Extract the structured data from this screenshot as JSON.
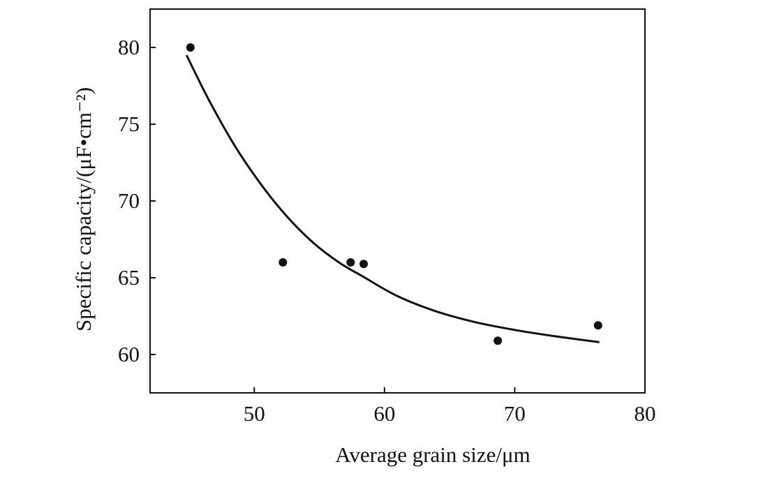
{
  "chart_data": {
    "type": "scatter",
    "title": "",
    "xlabel": "Average grain size/μm",
    "ylabel": "Specific capacity/(μF•cm⁻²)",
    "xlim": [
      42,
      80
    ],
    "ylim": [
      57.5,
      82.5
    ],
    "xticks": [
      50,
      60,
      70,
      80
    ],
    "yticks": [
      60,
      65,
      70,
      75,
      80
    ],
    "grid": false,
    "legend": "none",
    "series": [
      {
        "kind": "points",
        "x": [
          45.1,
          52.2,
          57.4,
          58.4,
          68.7,
          76.4
        ],
        "y": [
          80.0,
          66.0,
          66.0,
          65.9,
          60.9,
          61.9
        ]
      },
      {
        "kind": "fit-curve",
        "x": [
          44.8,
          46.5,
          48.5,
          50.5,
          52.5,
          54.5,
          56.5,
          58.5,
          61,
          64,
          67,
          70,
          73,
          76.5
        ],
        "y": [
          79.5,
          76.6,
          73.6,
          71.1,
          69.0,
          67.3,
          66.0,
          65.0,
          63.8,
          62.8,
          62.1,
          61.6,
          61.2,
          60.8
        ]
      }
    ],
    "colors": {
      "marks": "#111111",
      "background": "#ffffff"
    }
  }
}
